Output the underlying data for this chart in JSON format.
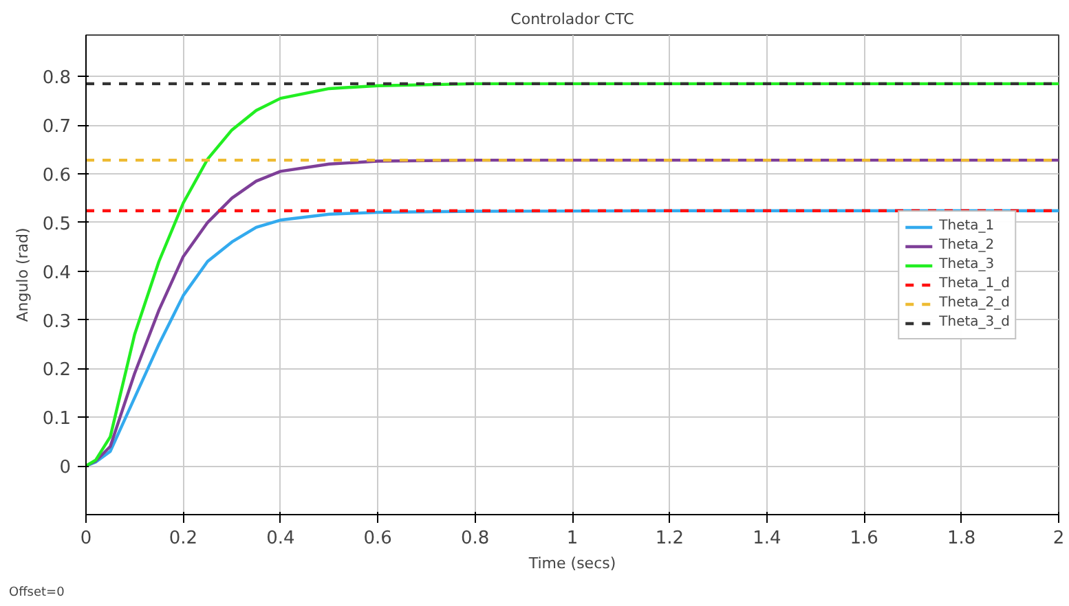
{
  "chart_data": {
    "type": "line",
    "title": "Controlador CTC",
    "xlabel": "Time (secs)",
    "ylabel": "Angulo (rad)",
    "xlim": [
      0,
      2
    ],
    "ylim": [
      -0.1,
      0.885
    ],
    "xticks": [
      0,
      0.2,
      0.4,
      0.6,
      0.8,
      1,
      1.2,
      1.4,
      1.6,
      1.8,
      2
    ],
    "yticks": [
      0,
      0.1,
      0.2,
      0.3,
      0.4,
      0.5,
      0.6,
      0.7,
      0.8
    ],
    "grid": true,
    "legend": "right",
    "annotations": [
      "Offset=0"
    ],
    "x": [
      0,
      0.02,
      0.05,
      0.1,
      0.15,
      0.2,
      0.25,
      0.3,
      0.35,
      0.4,
      0.5,
      0.6,
      0.8,
      1.2,
      2
    ],
    "series": [
      {
        "name": "Theta_1",
        "color": "#33aaee",
        "line_style": "solid",
        "values": [
          0,
          0.008,
          0.03,
          0.14,
          0.25,
          0.35,
          0.42,
          0.46,
          0.49,
          0.505,
          0.517,
          0.521,
          0.523,
          0.524,
          0.524
        ]
      },
      {
        "name": "Theta_2",
        "color": "#7e3f98",
        "line_style": "solid",
        "values": [
          0,
          0.01,
          0.04,
          0.19,
          0.32,
          0.43,
          0.5,
          0.55,
          0.585,
          0.605,
          0.62,
          0.626,
          0.628,
          0.628,
          0.628
        ]
      },
      {
        "name": "Theta_3",
        "color": "#22ee22",
        "line_style": "solid",
        "values": [
          0,
          0.012,
          0.06,
          0.27,
          0.42,
          0.54,
          0.63,
          0.69,
          0.73,
          0.755,
          0.775,
          0.781,
          0.785,
          0.785,
          0.785
        ]
      },
      {
        "name": "Theta_1_d",
        "color": "#ff1111",
        "line_style": "dashed",
        "values": [
          0.524,
          0.524,
          0.524,
          0.524,
          0.524,
          0.524,
          0.524,
          0.524,
          0.524,
          0.524,
          0.524,
          0.524,
          0.524,
          0.524,
          0.524
        ]
      },
      {
        "name": "Theta_2_d",
        "color": "#eebb33",
        "line_style": "dashed",
        "values": [
          0.628,
          0.628,
          0.628,
          0.628,
          0.628,
          0.628,
          0.628,
          0.628,
          0.628,
          0.628,
          0.628,
          0.628,
          0.628,
          0.628,
          0.628
        ]
      },
      {
        "name": "Theta_3_d",
        "color": "#333333",
        "line_style": "dashed",
        "values": [
          0.785,
          0.785,
          0.785,
          0.785,
          0.785,
          0.785,
          0.785,
          0.785,
          0.785,
          0.785,
          0.785,
          0.785,
          0.785,
          0.785,
          0.785
        ]
      }
    ]
  }
}
